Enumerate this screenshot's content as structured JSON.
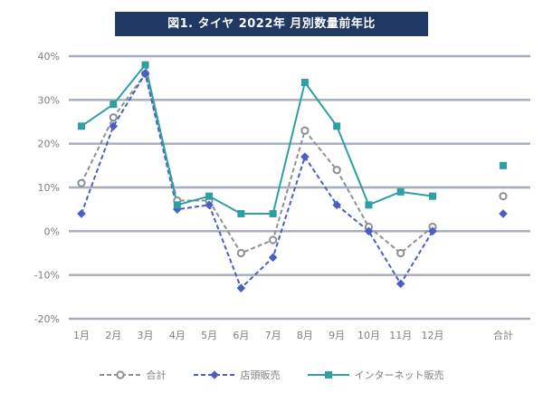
{
  "title": "図1. タイヤ 2022年 月別数量前年比",
  "chart_data": {
    "type": "line",
    "title": "図1. タイヤ 2022年 月別数量前年比",
    "categories": [
      "1月",
      "2月",
      "3月",
      "4月",
      "5月",
      "6月",
      "7月",
      "8月",
      "9月",
      "10月",
      "11月",
      "12月",
      "合計"
    ],
    "series": [
      {
        "name": "合計",
        "key": "total",
        "marker": "circle",
        "color": "#8c9096",
        "dash": true,
        "values": [
          11,
          26,
          36,
          7,
          7,
          -5,
          -2,
          23,
          14,
          1,
          -5,
          1,
          8
        ]
      },
      {
        "name": "店頭販売",
        "key": "store-sales",
        "marker": "diamond",
        "color": "#4a5ec4",
        "dash": true,
        "values": [
          4,
          24,
          36,
          5,
          6,
          -13,
          -6,
          17,
          6,
          0,
          -12,
          0,
          4
        ]
      },
      {
        "name": "インターネット販売",
        "key": "internet-sales",
        "marker": "square",
        "color": "#2e9fa5",
        "dash": false,
        "values": [
          24,
          29,
          38,
          6,
          8,
          4,
          4,
          34,
          24,
          6,
          9,
          8,
          15
        ]
      }
    ],
    "ylim": [
      -20,
      40
    ],
    "yticks": [
      40,
      30,
      20,
      10,
      0,
      -10,
      -20
    ],
    "ytick_suffix": "%",
    "grid": true,
    "gridline_color": "#a6adb8",
    "axis_label_color": "#7f7f7f",
    "legend_position": "bottom"
  }
}
